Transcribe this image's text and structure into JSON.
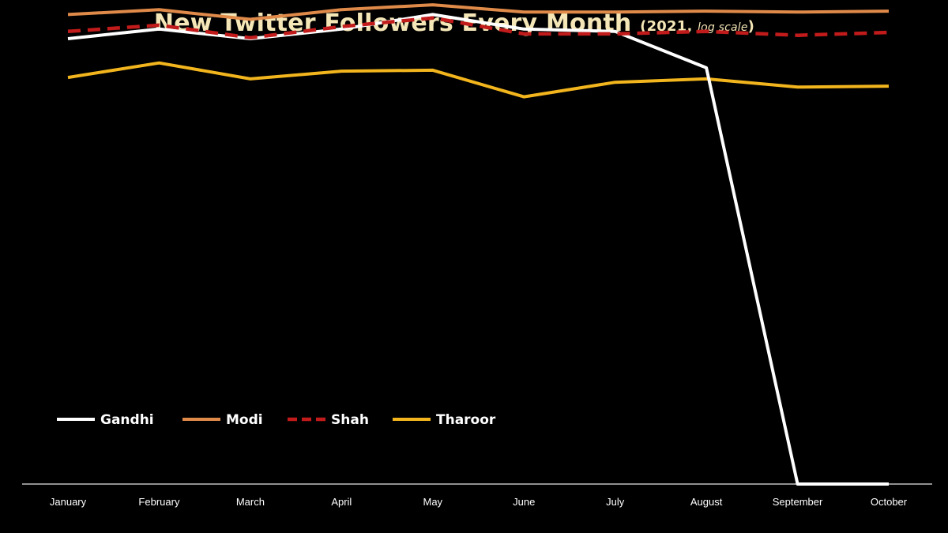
{
  "chart_data": {
    "type": "line",
    "title": "New Twitter Followers Every Month",
    "subtitle_prefix": "(2021, ",
    "subtitle_italic": "log scale",
    "subtitle_suffix": ")",
    "y_scale": "log",
    "grid": false,
    "legend_position": "bottom-left",
    "categories": [
      "January",
      "February",
      "March",
      "April",
      "May",
      "June",
      "July",
      "August",
      "September",
      "October"
    ],
    "series": [
      {
        "name": "Gandhi",
        "color": "#ffffff",
        "dash": false,
        "values": [
          0.92,
          0.94,
          0.92,
          0.94,
          0.97,
          0.94,
          0.935,
          0.86,
          0.0,
          0.0
        ]
      },
      {
        "name": "Modi",
        "color": "#e08a4a",
        "dash": false,
        "values": [
          0.97,
          0.98,
          0.96,
          0.98,
          0.99,
          0.975,
          0.975,
          0.977,
          0.975,
          0.977
        ]
      },
      {
        "name": "Shah",
        "color": "#c21b1b",
        "dash": true,
        "values": [
          0.935,
          0.948,
          0.922,
          0.945,
          0.963,
          0.93,
          0.93,
          0.935,
          0.927,
          0.933
        ]
      },
      {
        "name": "Tharoor",
        "color": "#f2b51d",
        "dash": false,
        "values": [
          0.84,
          0.87,
          0.837,
          0.853,
          0.855,
          0.8,
          0.83,
          0.837,
          0.82,
          0.822
        ]
      }
    ]
  }
}
